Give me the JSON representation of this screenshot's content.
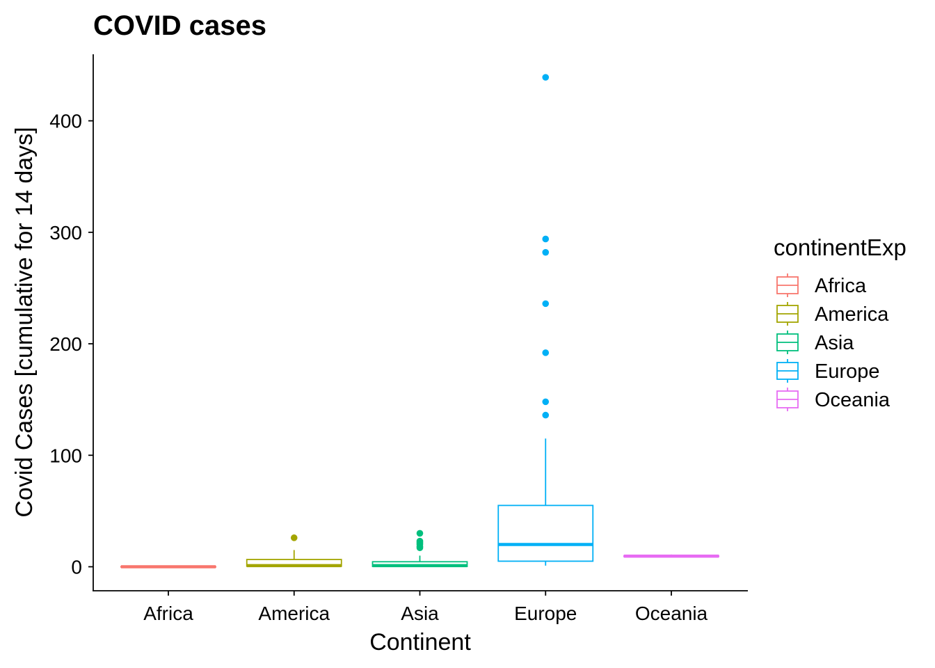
{
  "chart_data": {
    "type": "boxplot",
    "title": "COVID cases",
    "xlabel": "Continent",
    "ylabel": "Covid Cases [cumulative for 14 days]",
    "ylim": [
      -22,
      460
    ],
    "yticks": [
      0,
      100,
      200,
      300,
      400
    ],
    "categories": [
      "Africa",
      "America",
      "Asia",
      "Europe",
      "Oceania"
    ],
    "legend": {
      "title": "continentExp",
      "position": "right"
    },
    "grid": false,
    "series": [
      {
        "name": "Africa",
        "color": "#F8766D",
        "whisker_low": 0,
        "q1": 0,
        "median": 0,
        "q3": 0.3,
        "whisker_high": 0.5,
        "outliers": []
      },
      {
        "name": "America",
        "color": "#A3A500",
        "whisker_low": 0,
        "q1": 0.5,
        "median": 1,
        "q3": 6.5,
        "whisker_high": 15,
        "outliers": [
          26
        ]
      },
      {
        "name": "Asia",
        "color": "#00BF7D",
        "whisker_low": 0,
        "q1": 0.3,
        "median": 1,
        "q3": 4.5,
        "whisker_high": 10,
        "outliers": [
          17,
          18,
          20,
          21,
          22,
          23,
          30
        ]
      },
      {
        "name": "Europe",
        "color": "#00B0F6",
        "whisker_low": 1,
        "q1": 5,
        "median": 20,
        "q3": 55,
        "whisker_high": 115,
        "outliers": [
          136,
          148,
          192,
          236,
          282,
          294,
          439
        ]
      },
      {
        "name": "Oceania",
        "color": "#E76BF3",
        "whisker_low": 8.5,
        "q1": 9,
        "median": 9.5,
        "q3": 10,
        "whisker_high": 11,
        "outliers": []
      }
    ]
  }
}
